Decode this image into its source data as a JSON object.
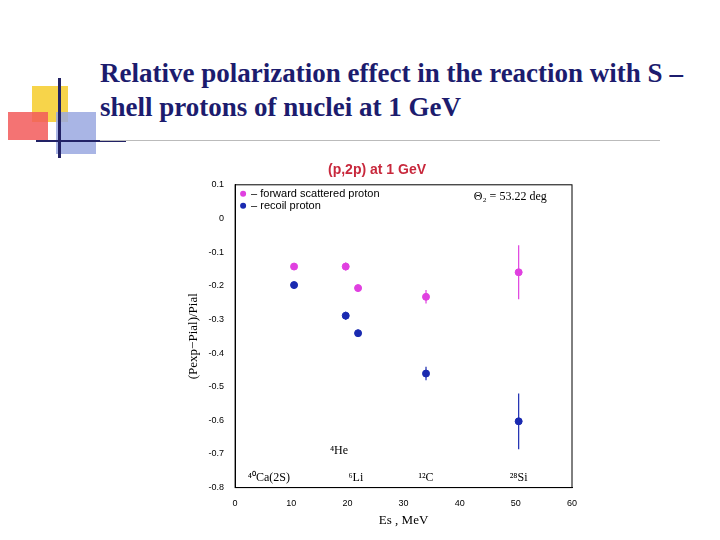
{
  "header": {
    "title": "Relative polarization effect in the reaction with S – shell protons of nuclei at 1 GeV"
  },
  "chart_data": {
    "type": "scatter",
    "title": "(p,2p) at 1 GeV",
    "x_label": "Es , MeV",
    "y_label": "(Pexp−Pial)/Pial",
    "xlim": [
      0,
      60
    ],
    "xticks": [
      0,
      10,
      20,
      30,
      40,
      50,
      60
    ],
    "ylim": [
      -0.8,
      0.1
    ],
    "yticks": [
      -0.8,
      -0.7,
      -0.6,
      -0.5,
      -0.4,
      -0.3,
      -0.2,
      -0.1,
      0,
      0.1
    ],
    "grid": false,
    "legend": "upper left",
    "series": [
      {
        "name": "– forward scattered proton",
        "color": "#e040e0",
        "marker": "circle",
        "x": [
          10.5,
          19.7,
          21.9,
          34.0,
          50.5
        ],
        "values": [
          -0.143,
          -0.143,
          -0.207,
          -0.233,
          -0.16
        ],
        "errors": [
          0.01,
          0.012,
          0.01,
          0.02,
          0.08
        ]
      },
      {
        "name": "– recoil proton",
        "color": "#1a2ab0",
        "marker": "circle",
        "x": [
          10.5,
          19.7,
          21.9,
          34.0,
          50.5
        ],
        "values": [
          -0.198,
          -0.289,
          -0.341,
          -0.461,
          -0.603
        ],
        "errors": [
          0.01,
          0.012,
          0.01,
          0.02,
          0.083
        ]
      }
    ],
    "annotations": [
      {
        "text": "Θ₂ = 53.22 deg",
        "x": 49,
        "y": 0.065
      },
      {
        "text": "⁴⁰Ca(2S)",
        "x": 6,
        "y": -0.77
      },
      {
        "text": "⁴He",
        "x": 18.5,
        "y": -0.69
      },
      {
        "text": "⁶Li",
        "x": 21.5,
        "y": -0.77
      },
      {
        "text": "¹²C",
        "x": 34,
        "y": -0.77
      },
      {
        "text": "²⁸Si",
        "x": 50.5,
        "y": -0.77
      }
    ]
  }
}
